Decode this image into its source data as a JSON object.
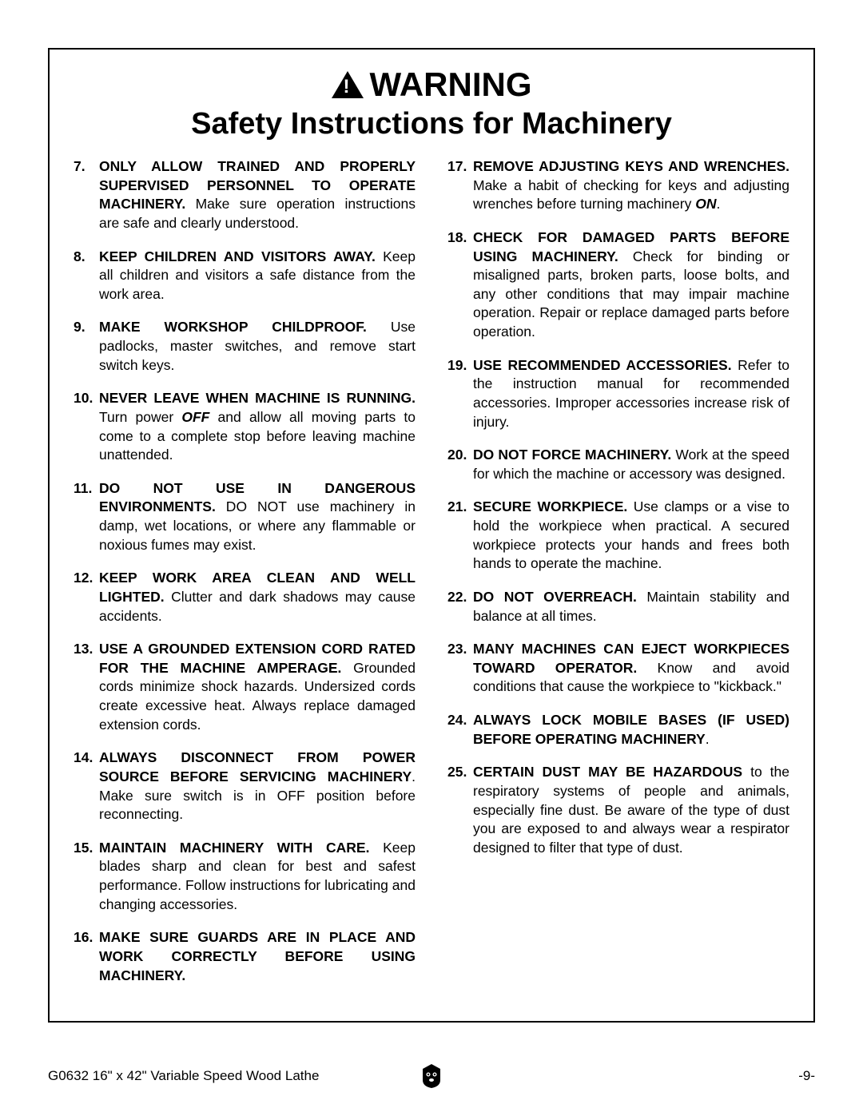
{
  "header": {
    "warning": "WARNING",
    "subtitle": "Safety Instructions for Machinery"
  },
  "leftColumn": [
    {
      "num": "7.",
      "bold": "ONLY ALLOW TRAINED AND PROPERLY SUPERVISED PERSONNEL TO OPERATE MACHINERY.",
      "rest": " Make sure operation instructions are safe and clearly understood."
    },
    {
      "num": "8.",
      "bold": "KEEP CHILDREN AND VISITORS AWAY.",
      "rest": " Keep all children and visitors a safe distance from the work area."
    },
    {
      "num": "9.",
      "bold": "MAKE WORKSHOP CHILDPROOF.",
      "rest": " Use padlocks, master switches, and remove start switch keys."
    },
    {
      "num": "10.",
      "bold": "NEVER LEAVE WHEN MACHINE IS RUNNING.",
      "rest": " Turn power ",
      "emphasis": "OFF",
      "rest2": " and allow all moving parts to come to a complete stop before leaving machine unattended."
    },
    {
      "num": "11.",
      "bold": "DO NOT USE IN DANGEROUS ENVIRONMENTS.",
      "rest": " DO NOT use machinery in damp, wet locations, or where any flammable or noxious fumes may exist."
    },
    {
      "num": "12.",
      "bold": "KEEP WORK AREA CLEAN AND WELL LIGHTED.",
      "rest": " Clutter and dark shadows may cause accidents."
    },
    {
      "num": "13.",
      "bold": "USE A GROUNDED EXTENSION CORD RATED FOR THE MACHINE AMPERAGE.",
      "rest": " Grounded cords minimize shock hazards. Undersized cords create excessive heat. Always replace damaged extension cords."
    },
    {
      "num": "14.",
      "bold": "ALWAYS DISCONNECT FROM POWER SOURCE BEFORE SERVICING MACHINERY",
      "rest": ". Make sure switch is in OFF position before reconnecting."
    },
    {
      "num": "15.",
      "bold": "MAINTAIN MACHINERY WITH CARE.",
      "rest": " Keep blades sharp and clean for best and safest performance. Follow instructions for lubricating and changing accessories."
    },
    {
      "num": "16.",
      "bold": "MAKE SURE GUARDS ARE IN PLACE AND WORK CORRECTLY BEFORE USING MACHINERY.",
      "rest": ""
    }
  ],
  "rightColumn": [
    {
      "num": "17.",
      "bold": "REMOVE ADJUSTING KEYS AND WRENCHES.",
      "rest": " Make a habit of checking for keys and adjusting wrenches before turning machinery ",
      "emphasis": "ON",
      "rest2": "."
    },
    {
      "num": "18.",
      "bold": "CHECK FOR DAMAGED PARTS BEFORE USING MACHINERY.",
      "rest": " Check for binding or misaligned parts, broken parts, loose bolts, and any other conditions that may impair machine operation. Repair or replace damaged parts before operation."
    },
    {
      "num": "19.",
      "bold": "USE RECOMMENDED ACCESSORIES.",
      "rest": " Refer to the instruction manual for recommended accessories. Improper accessories increase risk of injury."
    },
    {
      "num": "20.",
      "bold": "DO NOT FORCE MACHINERY.",
      "rest": " Work at the speed for which the machine or accessory was designed."
    },
    {
      "num": "21.",
      "bold": "SECURE WORKPIECE.",
      "rest": " Use clamps or a vise to hold the workpiece when practical. A secured workpiece protects your hands and frees both hands to operate the machine."
    },
    {
      "num": "22.",
      "bold": "DO NOT OVERREACH.",
      "rest": " Maintain stability and balance at all times."
    },
    {
      "num": "23.",
      "bold": "MANY MACHINES CAN EJECT WORKPIECES TOWARD OPERATOR.",
      "rest": " Know and avoid conditions that cause the workpiece to \"kickback.\""
    },
    {
      "num": "24.",
      "bold": "ALWAYS LOCK MOBILE BASES (IF USED) BEFORE OPERATING MACHINERY",
      "rest": "."
    },
    {
      "num": "25.",
      "bold": "CERTAIN DUST MAY BE HAZARDOUS",
      "rest": " to the respiratory systems of people and animals, especially fine dust. Be aware of the type of dust you are exposed to and always wear a respirator designed to filter that type of dust."
    }
  ],
  "footer": {
    "left": "G0632 16\" x 42\" Variable Speed Wood Lathe",
    "right": "-9-"
  }
}
